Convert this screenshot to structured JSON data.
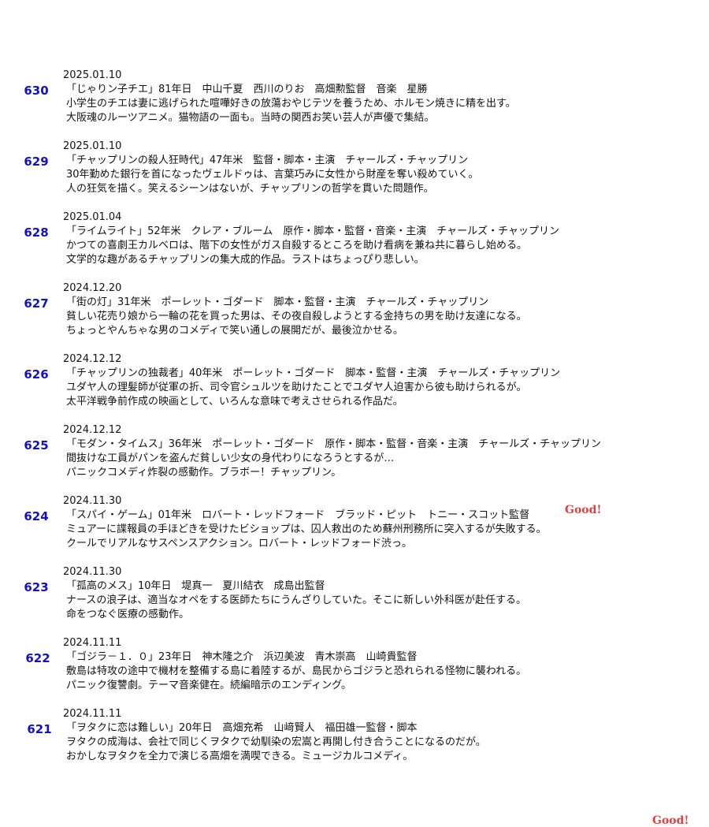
{
  "entries": [
    {
      "number": "630",
      "date": "2025.01.10",
      "line1": "「じゃりン子チエ」81年日　中山千夏　西川のりお　高畑勲監督　音楽　星勝",
      "line2": "小学生のチエは妻に逃げられた喧嘩好きの放蕩おやじテツを養うため、ホルモン焼きに精を出す。",
      "line3": "大阪魂のルーツアニメ。猫物語の一面も。当時の関西お笑い芸人が声優で集結。",
      "good": ""
    },
    {
      "number": "629",
      "date": "2025.01.10",
      "line1": "「チャップリンの殺人狂時代」47年米　監督・脚本・主演　チャールズ・チャップリン",
      "line2": "30年勤めた銀行を首になったヴェルドゥは、言葉巧みに女性から財産を奪い殺めていく。",
      "line3": "人の狂気を描く。笑えるシーンはないが、チャップリンの哲学を貫いた問題作。",
      "good": ""
    },
    {
      "number": "628",
      "date": "2025.01.04",
      "line1": "「ライムライト」52年米　クレア・ブルーム　原作・脚本・監督・音楽・主演　チャールズ・チャップリン",
      "line2": "かつての喜劇王カルベロは、階下の女性がガス自殺するところを助け看病を兼ね共に暮らし始める。",
      "line3": "文学的な趣があるチャップリンの集大成的作品。ラストはちょっぴり悲しい。",
      "good": ""
    },
    {
      "number": "627",
      "date": "2024.12.20",
      "line1": "「街の灯」31年米　ポーレット・ゴダード　脚本・監督・主演　チャールズ・チャップリン",
      "line2": "貧しい花売り娘から一輪の花を買った男は、その夜自殺しようとする金持ちの男を助け友達になる。",
      "line3": "ちょっとやんちゃな男のコメディで笑い通しの展開だが、最後泣かせる。",
      "good": "Good!"
    },
    {
      "number": "626",
      "date": "2024.12.12",
      "line1": "「チャップリンの独裁者」40年米　ポーレット・ゴダード　脚本・監督・主演　チャールズ・チャップリン",
      "line2": "ユダヤ人の理髪師が従軍の折、司令官シュルツを助けたことでユダヤ人迫害から彼も助けられるが。",
      "line3": "太平洋戦争前作成の映画として、いろんな意味で考えさせられる作品だ。",
      "good": ""
    },
    {
      "number": "625",
      "date": "2024.12.12",
      "line1": "「モダン・タイムス」36年米　ポーレット・ゴダード　原作・脚本・監督・音楽・主演　チャールズ・チャップリン",
      "line2": "間抜けな工員がパンを盗んだ貧しい少女の身代わりになろうとするが…",
      "line3": "パニックコメディ炸裂の感動作。ブラボー！チャップリン。",
      "good": "Good!"
    },
    {
      "number": "624",
      "date": "2024.11.30",
      "line1": "「スパイ・ゲーム」01年米　ロバート・レッドフォード　ブラッド・ピット　トニー・スコット監督",
      "line2": "ミュアーに諜報員の手ほどきを受けたビショップは、囚人救出のため蘇州刑務所に突入するが失敗する。",
      "line3": "クールでリアルなサスペンスアクション。ロバート・レッドフォード渋っ。",
      "good": ""
    },
    {
      "number": "623",
      "date": "2024.11.30",
      "line1": "「孤高のメス」10年日　堤真一　夏川結衣　成島出監督",
      "line2": "ナースの浪子は、適当なオペをする医師たちにうんざりしていた。そこに新しい外科医が赴任する。",
      "line3": "命をつなぐ医療の感動作。",
      "good": ""
    },
    {
      "number": "622",
      "date": "2024.11.11",
      "line1": "「ゴジラ－１．０」23年日　神木隆之介　浜辺美波　青木崇高　山崎貴監督",
      "line2": "敷島は特攻の途中で機材を整備する島に着陸するが、島民からゴジラと恐れられる怪物に襲われる。",
      "line3": "パニック復讐劇。テーマ音楽健在。続編暗示のエンディング。",
      "good": ""
    },
    {
      "number": "621",
      "date": "2024.11.11",
      "line1": "「ヲタクに恋は難しい」20年日　高畑充希　山﨑賢人　福田雄一監督・脚本",
      "line2": "ヲタクの成海は、会社で同じくヲタクで幼馴染の宏嵩と再開し付き合うことになるのだが。",
      "line3": "おかしなヲタクを全力で演じる高畑を満喫できる。ミュージカルコメディ。",
      "good": ""
    }
  ]
}
